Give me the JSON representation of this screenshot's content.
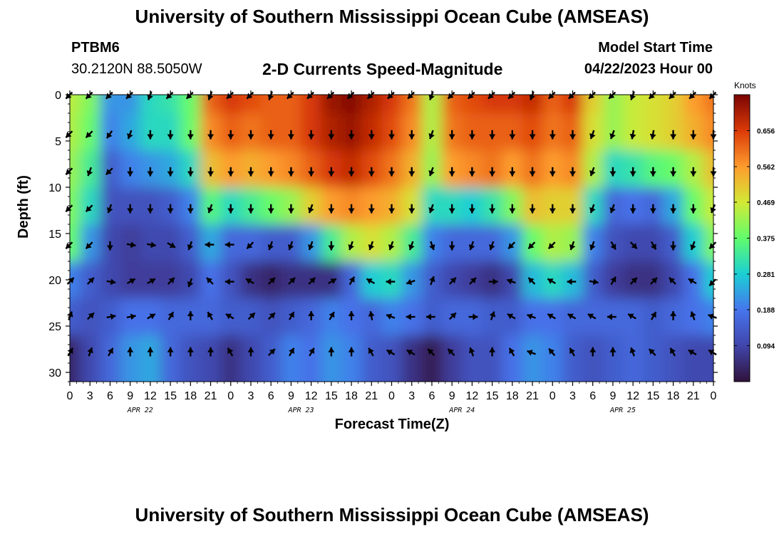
{
  "header": {
    "title": "University of Southern Mississippi Ocean Cube (AMSEAS)",
    "station": "PTBM6",
    "coords": "30.2120N  88.5050W",
    "subtitle": "2-D Currents Speed-Magnitude",
    "model_start_label": "Model Start Time",
    "model_start_value": "04/22/2023 Hour 00"
  },
  "footer": {
    "title": "University of Southern Mississippi Ocean Cube (AMSEAS)"
  },
  "colors": {
    "ramp": [
      "#30123b",
      "#4145ab",
      "#4675ed",
      "#1bcfd4",
      "#61fc6c",
      "#d2e935",
      "#fe9b2d",
      "#db3a07",
      "#7a0403"
    ],
    "arrow": "#000000",
    "axis": "#000000"
  },
  "chart_data": {
    "type": "heatmap",
    "title": "2-D Currents Speed-Magnitude",
    "xlabel": "Forecast Time(Z)",
    "ylabel": "Depth (ft)",
    "x_range_hours": [
      0,
      96
    ],
    "x_tick_labels": [
      "0",
      "3",
      "6",
      "9",
      "12",
      "15",
      "18",
      "21",
      "0",
      "3",
      "6",
      "9",
      "12",
      "15",
      "18",
      "21",
      "0",
      "3",
      "6",
      "9",
      "12",
      "15",
      "18",
      "21",
      "0",
      "3",
      "6",
      "9",
      "12",
      "15",
      "18",
      "21",
      "0"
    ],
    "date_labels": [
      {
        "label": "APR 22",
        "hour": 10.5
      },
      {
        "label": "APR 23",
        "hour": 34.5
      },
      {
        "label": "APR 24",
        "hour": 58.5
      },
      {
        "label": "APR 25",
        "hour": 82.5
      }
    ],
    "ylim": [
      31,
      0
    ],
    "y_ticks": [
      0,
      5,
      10,
      15,
      20,
      25,
      30
    ],
    "colorbar": {
      "unit": "Knots",
      "range": [
        0,
        0.75
      ],
      "ticks": [
        "0.656",
        "0.562",
        "0.469",
        "0.375",
        "0.281",
        "0.188",
        "0.094"
      ],
      "tick_values": [
        0.656,
        0.562,
        0.469,
        0.375,
        0.281,
        0.188,
        0.094
      ]
    },
    "depth_levels_ft": [
      0,
      4,
      8,
      12,
      16,
      20,
      24,
      28
    ],
    "time_step_hours": 3,
    "speed_knots_by_depth": [
      [
        0.45,
        0.4,
        0.22,
        0.22,
        0.3,
        0.32,
        0.38,
        0.62,
        0.66,
        0.64,
        0.62,
        0.62,
        0.66,
        0.72,
        0.74,
        0.7,
        0.66,
        0.6,
        0.44,
        0.62,
        0.64,
        0.66,
        0.66,
        0.68,
        0.62,
        0.66,
        0.5,
        0.42,
        0.46,
        0.48,
        0.5,
        0.56,
        0.6
      ],
      [
        0.44,
        0.38,
        0.2,
        0.24,
        0.3,
        0.3,
        0.38,
        0.58,
        0.62,
        0.6,
        0.62,
        0.62,
        0.66,
        0.7,
        0.72,
        0.68,
        0.64,
        0.58,
        0.44,
        0.6,
        0.62,
        0.62,
        0.62,
        0.64,
        0.6,
        0.62,
        0.48,
        0.42,
        0.46,
        0.48,
        0.5,
        0.54,
        0.58
      ],
      [
        0.42,
        0.34,
        0.14,
        0.2,
        0.22,
        0.24,
        0.3,
        0.52,
        0.56,
        0.54,
        0.56,
        0.58,
        0.62,
        0.66,
        0.68,
        0.64,
        0.6,
        0.54,
        0.42,
        0.56,
        0.58,
        0.6,
        0.56,
        0.6,
        0.56,
        0.58,
        0.44,
        0.3,
        0.32,
        0.36,
        0.38,
        0.44,
        0.52
      ],
      [
        0.4,
        0.3,
        0.12,
        0.12,
        0.12,
        0.14,
        0.2,
        0.36,
        0.3,
        0.34,
        0.38,
        0.42,
        0.5,
        0.56,
        0.58,
        0.56,
        0.54,
        0.48,
        0.3,
        0.3,
        0.28,
        0.32,
        0.4,
        0.52,
        0.5,
        0.5,
        0.3,
        0.16,
        0.18,
        0.16,
        0.24,
        0.38,
        0.46
      ],
      [
        0.38,
        0.22,
        0.1,
        0.08,
        0.1,
        0.1,
        0.14,
        0.24,
        0.16,
        0.16,
        0.14,
        0.14,
        0.22,
        0.34,
        0.44,
        0.48,
        0.44,
        0.34,
        0.2,
        0.16,
        0.16,
        0.16,
        0.22,
        0.38,
        0.44,
        0.42,
        0.2,
        0.12,
        0.1,
        0.1,
        0.14,
        0.28,
        0.4
      ],
      [
        0.2,
        0.14,
        0.1,
        0.08,
        0.08,
        0.08,
        0.1,
        0.18,
        0.12,
        0.06,
        0.04,
        0.06,
        0.06,
        0.06,
        0.16,
        0.28,
        0.3,
        0.22,
        0.14,
        0.1,
        0.08,
        0.06,
        0.1,
        0.26,
        0.3,
        0.26,
        0.14,
        0.08,
        0.06,
        0.06,
        0.1,
        0.18,
        0.28
      ],
      [
        0.14,
        0.12,
        0.14,
        0.18,
        0.18,
        0.16,
        0.16,
        0.16,
        0.14,
        0.14,
        0.12,
        0.14,
        0.16,
        0.2,
        0.18,
        0.16,
        0.2,
        0.18,
        0.14,
        0.16,
        0.16,
        0.14,
        0.14,
        0.18,
        0.18,
        0.16,
        0.16,
        0.16,
        0.16,
        0.14,
        0.16,
        0.18,
        0.2
      ],
      [
        0.04,
        0.1,
        0.16,
        0.22,
        0.24,
        0.16,
        0.12,
        0.1,
        0.06,
        0.1,
        0.14,
        0.2,
        0.18,
        0.22,
        0.2,
        0.14,
        0.12,
        0.06,
        0.02,
        0.08,
        0.12,
        0.12,
        0.18,
        0.22,
        0.2,
        0.14,
        0.12,
        0.14,
        0.16,
        0.14,
        0.12,
        0.1,
        0.1
      ]
    ],
    "arrow_depths_ft": [
      0,
      4.2,
      8.2,
      12.2,
      16.2,
      20.2,
      24,
      27.9
    ],
    "arrow_direction_deg_by_depth": [
      [
        225,
        225,
        225,
        225,
        200,
        225,
        225,
        200,
        225,
        225,
        200,
        225,
        225,
        225,
        225,
        225,
        225,
        225,
        200,
        225,
        225,
        225,
        225,
        200,
        225,
        225,
        225,
        225,
        200,
        225,
        225,
        225,
        225
      ],
      [
        225,
        225,
        215,
        200,
        180,
        180,
        180,
        180,
        180,
        180,
        180,
        180,
        180,
        180,
        180,
        180,
        180,
        180,
        200,
        180,
        180,
        180,
        180,
        180,
        180,
        180,
        200,
        200,
        190,
        190,
        180,
        180,
        180
      ],
      [
        225,
        200,
        225,
        180,
        180,
        180,
        180,
        180,
        180,
        180,
        180,
        180,
        180,
        180,
        180,
        180,
        180,
        180,
        200,
        180,
        180,
        180,
        180,
        180,
        180,
        180,
        200,
        180,
        180,
        180,
        180,
        180,
        180
      ],
      [
        225,
        225,
        200,
        180,
        180,
        180,
        180,
        200,
        180,
        180,
        180,
        180,
        200,
        180,
        180,
        180,
        180,
        180,
        200,
        180,
        180,
        180,
        180,
        180,
        180,
        180,
        200,
        200,
        180,
        180,
        180,
        180,
        200
      ],
      [
        225,
        225,
        180,
        100,
        100,
        120,
        200,
        270,
        270,
        225,
        200,
        200,
        200,
        180,
        200,
        200,
        200,
        200,
        160,
        180,
        200,
        200,
        225,
        225,
        225,
        200,
        200,
        150,
        135,
        150,
        180,
        200,
        225
      ],
      [
        45,
        45,
        100,
        60,
        60,
        45,
        200,
        315,
        270,
        300,
        45,
        45,
        45,
        60,
        30,
        300,
        270,
        250,
        20,
        45,
        45,
        90,
        290,
        315,
        300,
        270,
        100,
        30,
        45,
        45,
        315,
        300,
        225
      ],
      [
        20,
        45,
        80,
        80,
        60,
        30,
        0,
        330,
        300,
        45,
        45,
        30,
        0,
        30,
        0,
        350,
        290,
        270,
        270,
        45,
        90,
        20,
        300,
        290,
        300,
        300,
        300,
        270,
        300,
        30,
        0,
        340,
        290
      ],
      [
        30,
        20,
        30,
        0,
        0,
        0,
        0,
        0,
        330,
        0,
        45,
        30,
        30,
        0,
        0,
        330,
        300,
        300,
        315,
        315,
        340,
        0,
        330,
        290,
        320,
        330,
        0,
        0,
        340,
        315,
        330,
        300,
        300
      ]
    ]
  }
}
